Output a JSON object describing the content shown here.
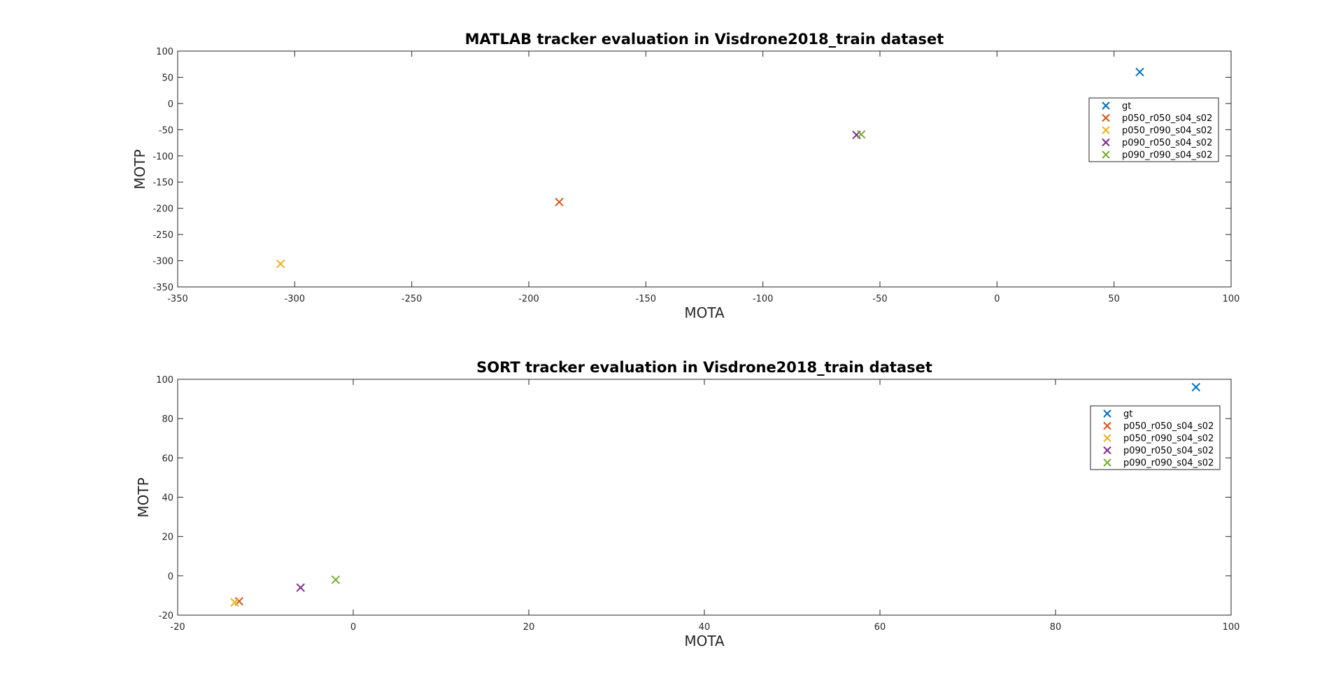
{
  "chart_data": [
    {
      "type": "scatter",
      "title": "MATLAB tracker evaluation in Visdrone2018_train dataset",
      "xlabel": "MOTA",
      "ylabel": "MOTP",
      "xlim": [
        -350,
        100
      ],
      "ylim": [
        -350,
        100
      ],
      "xticks": [
        -350,
        -300,
        -250,
        -200,
        -150,
        -100,
        -50,
        0,
        50,
        100
      ],
      "yticks": [
        -350,
        -300,
        -250,
        -200,
        -150,
        -100,
        -50,
        0,
        50,
        100
      ],
      "marker": "x",
      "grid": false,
      "legend_position": "right",
      "series": [
        {
          "name": "gt",
          "color": "#0072BD",
          "points": [
            [
              61,
              60
            ]
          ]
        },
        {
          "name": "p050_r050_s04_s02",
          "color": "#D95319",
          "points": [
            [
              -187,
              -188
            ]
          ]
        },
        {
          "name": "p050_r090_s04_s02",
          "color": "#EDB120",
          "points": [
            [
              -306,
              -306
            ]
          ]
        },
        {
          "name": "p090_r050_s04_s02",
          "color": "#7E2F8E",
          "points": [
            [
              -60,
              -60
            ]
          ]
        },
        {
          "name": "p090_r090_s04_s02",
          "color": "#77AC30",
          "points": [
            [
              -58,
              -59
            ]
          ]
        }
      ]
    },
    {
      "type": "scatter",
      "title": "SORT tracker evaluation in Visdrone2018_train dataset",
      "xlabel": "MOTA",
      "ylabel": "MOTP",
      "xlim": [
        -20,
        100
      ],
      "ylim": [
        -20,
        100
      ],
      "xticks": [
        -20,
        0,
        20,
        40,
        60,
        80,
        100
      ],
      "yticks": [
        -20,
        0,
        20,
        40,
        60,
        80,
        100
      ],
      "marker": "x",
      "grid": false,
      "legend_position": "right",
      "series": [
        {
          "name": "gt",
          "color": "#0072BD",
          "points": [
            [
              96,
              96
            ]
          ]
        },
        {
          "name": "p050_r050_s04_s02",
          "color": "#D95319",
          "points": [
            [
              -13,
              -13
            ]
          ]
        },
        {
          "name": "p050_r090_s04_s02",
          "color": "#EDB120",
          "points": [
            [
              -13.5,
              -13.5
            ]
          ]
        },
        {
          "name": "p090_r050_s04_s02",
          "color": "#7E2F8E",
          "points": [
            [
              -6,
              -6
            ]
          ]
        },
        {
          "name": "p090_r090_s04_s02",
          "color": "#77AC30",
          "points": [
            [
              -2,
              -2
            ]
          ]
        }
      ]
    }
  ]
}
